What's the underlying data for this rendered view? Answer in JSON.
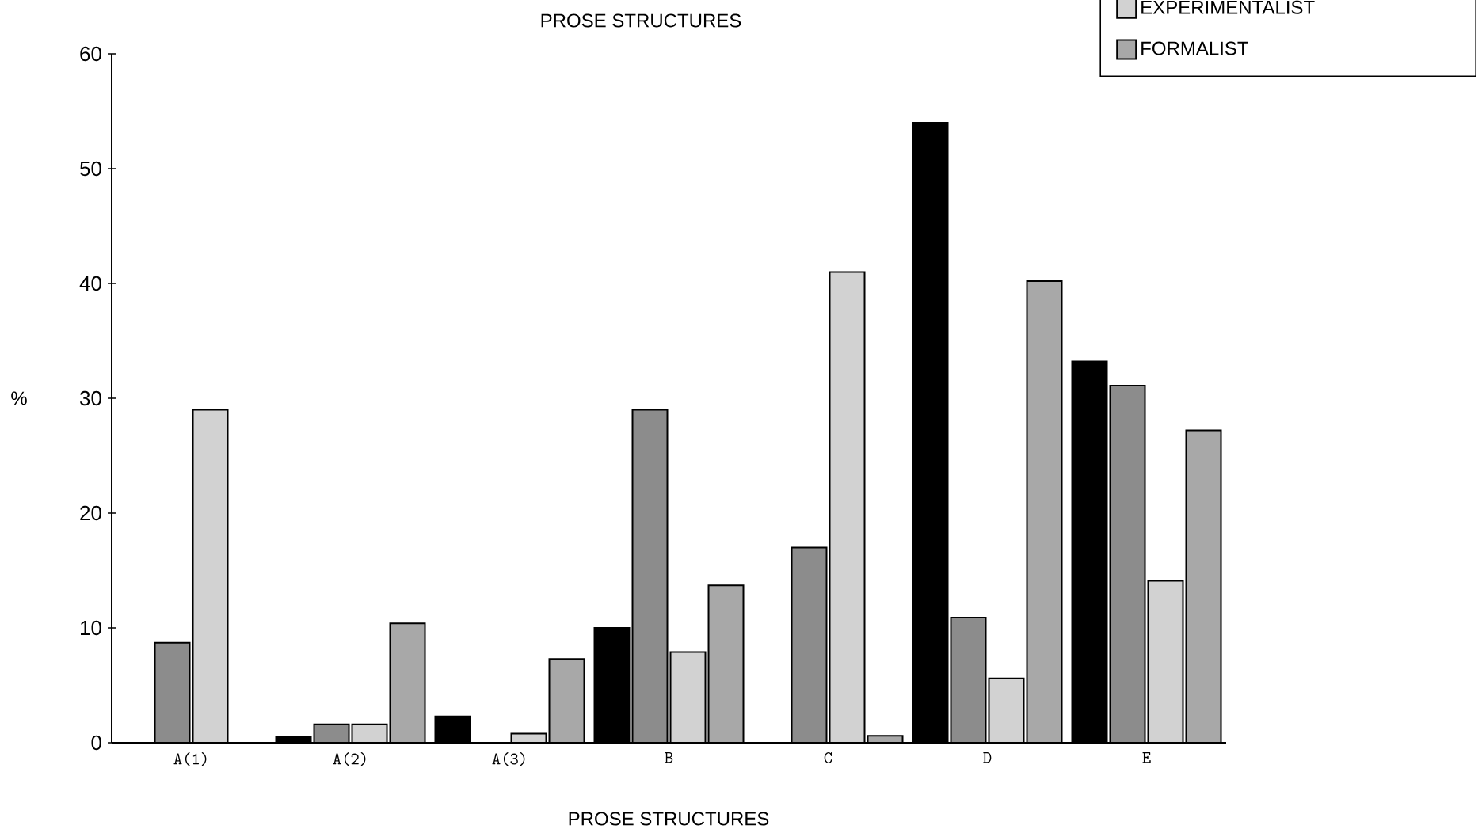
{
  "chart_data": {
    "type": "bar",
    "title": "PROSE STRUCTURES",
    "xlabel": "PROSE STRUCTURES",
    "ylabel": "%",
    "categories": [
      "A(1)",
      "A(2)",
      "A(3)",
      "B",
      "C",
      "D",
      "E"
    ],
    "series": [
      {
        "color": "#000000",
        "values": [
          0,
          0.5,
          2.3,
          10,
          0,
          54,
          33.2
        ]
      },
      {
        "color": "#8c8c8c",
        "values": [
          8.7,
          1.6,
          0,
          29,
          17,
          10.9,
          31.1
        ]
      },
      {
        "name": "EXPERIMENTALIST",
        "color": "#d2d2d2",
        "values": [
          29,
          1.6,
          0.8,
          7.9,
          41,
          5.6,
          14.1
        ]
      },
      {
        "name": "FORMALIST",
        "color": "#a8a8a8",
        "values": [
          0,
          10.4,
          7.3,
          13.7,
          0.6,
          40.2,
          27.2
        ]
      }
    ],
    "ylim": [
      0,
      60
    ],
    "yticks": [
      0,
      10,
      20,
      30,
      40,
      50,
      60
    ],
    "grid": false,
    "legend": "top right"
  }
}
